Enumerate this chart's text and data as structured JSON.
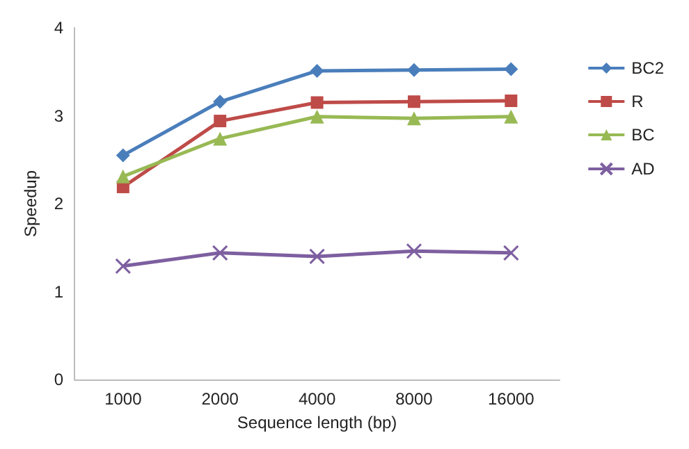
{
  "chart_data": {
    "type": "line",
    "xlabel": "Sequence length (bp)",
    "ylabel": "Speedup",
    "categories": [
      "1000",
      "2000",
      "4000",
      "8000",
      "16000"
    ],
    "ylim": [
      0,
      4
    ],
    "yticks": [
      0,
      1,
      2,
      3,
      4
    ],
    "grid": false,
    "legend": "right",
    "series": [
      {
        "name": "BC2",
        "color": "#4a7ebb",
        "marker": "diamond",
        "values": [
          2.55,
          3.16,
          3.51,
          3.52,
          3.53
        ]
      },
      {
        "name": "R",
        "color": "#be4b48",
        "marker": "square",
        "values": [
          2.19,
          2.94,
          3.15,
          3.16,
          3.17
        ]
      },
      {
        "name": "BC",
        "color": "#98b954",
        "marker": "triangle",
        "values": [
          2.31,
          2.74,
          2.99,
          2.97,
          2.99
        ]
      },
      {
        "name": "AD",
        "color": "#7d5fa0",
        "marker": "cross",
        "values": [
          1.29,
          1.44,
          1.4,
          1.46,
          1.44
        ]
      }
    ]
  }
}
